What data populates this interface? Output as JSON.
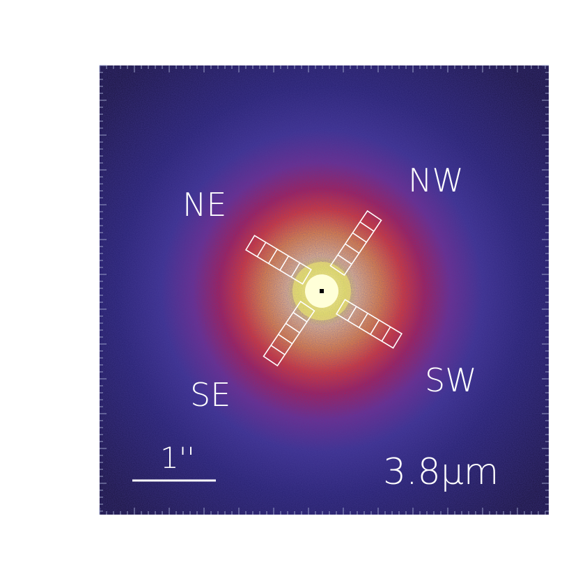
{
  "image": {
    "kind": "false-color astronomical image",
    "colormap": [
      "#1a1140",
      "#2e2a8a",
      "#6a2a8c",
      "#a01a5a",
      "#e02a20",
      "#f5881f",
      "#f8d25a",
      "#fffbd0"
    ],
    "background": "#ffffff"
  },
  "labels": {
    "ne": "NE",
    "nw": "NW",
    "se": "SE",
    "sw": "SW",
    "scale_bar": "1''",
    "wavelength": "3.8μm"
  },
  "apertures": {
    "count_per_arm": 5,
    "arms": [
      "NE",
      "NW",
      "SE",
      "SW"
    ],
    "stroke_color": "#ffffff"
  }
}
